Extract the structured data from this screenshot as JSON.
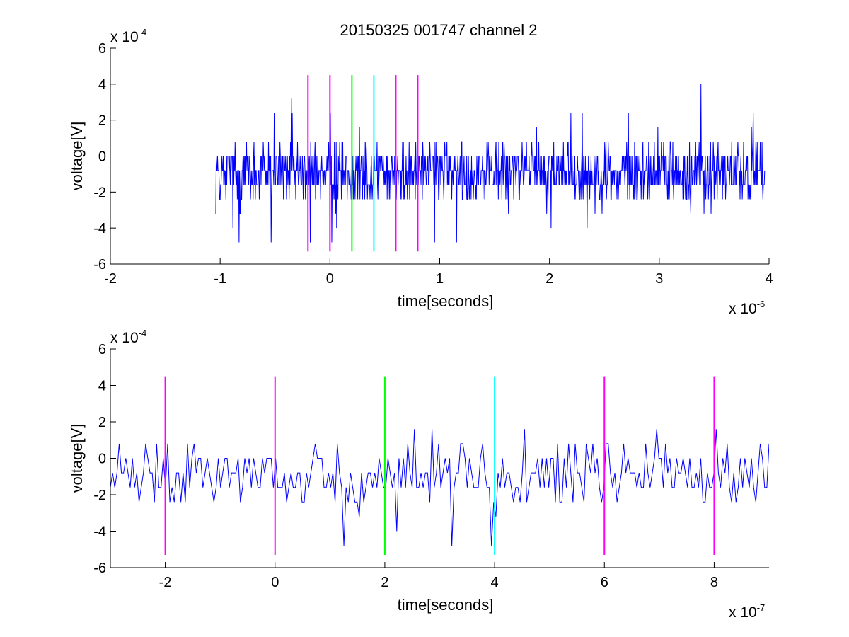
{
  "figure": {
    "title": "20150325 001747 channel 2"
  },
  "chart_data": [
    {
      "type": "line",
      "title": "20150325 001747 channel 2",
      "xlabel": "time[seconds]",
      "ylabel": "voltage[V]",
      "x_scale_label": "x 10",
      "x_scale_exponent": "-6",
      "y_scale_label": "x 10",
      "y_scale_exponent": "-4",
      "xlim": [
        -2,
        4
      ],
      "ylim": [
        -6,
        6
      ],
      "x_ticks": [
        "-2",
        "-1",
        "0",
        "1",
        "2",
        "3",
        "4"
      ],
      "y_ticks": [
        "-6",
        "-4",
        "-2",
        "0",
        "2",
        "4",
        "6"
      ],
      "x_tick_values": [
        -2,
        -1,
        0,
        1,
        2,
        3,
        4
      ],
      "y_tick_values": [
        -6,
        -4,
        -2,
        0,
        2,
        4,
        6
      ],
      "grid": false,
      "series": [
        {
          "color": "#0000ff",
          "x_range": [
            -1.04,
            3.96
          ],
          "samples": 1250,
          "baseline": -0.9,
          "quantum": 0.8,
          "approx_min": -4.8,
          "approx_max": 4.0
        }
      ],
      "markers": [
        {
          "x": -0.2,
          "color": "#ff00ff",
          "y_range": [
            -5.3,
            4.5
          ]
        },
        {
          "x": 0.0,
          "color": "#ff00ff",
          "y_range": [
            -5.3,
            4.5
          ]
        },
        {
          "x": 0.2,
          "color": "#00ff00",
          "y_range": [
            -5.3,
            4.5
          ]
        },
        {
          "x": 0.4,
          "color": "#00ffff",
          "y_range": [
            -5.3,
            4.5
          ]
        },
        {
          "x": 0.6,
          "color": "#ff00ff",
          "y_range": [
            -5.3,
            4.5
          ]
        },
        {
          "x": 0.8,
          "color": "#ff00ff",
          "y_range": [
            -5.3,
            4.5
          ]
        }
      ]
    },
    {
      "type": "line",
      "title": "",
      "xlabel": "time[seconds]",
      "ylabel": "voltage[V]",
      "x_scale_label": "x 10",
      "x_scale_exponent": "-7",
      "y_scale_label": "x 10",
      "y_scale_exponent": "-4",
      "xlim": [
        -3,
        9
      ],
      "ylim": [
        -6,
        6
      ],
      "x_ticks": [
        "-2",
        "0",
        "2",
        "4",
        "6",
        "8"
      ],
      "y_ticks": [
        "-6",
        "-4",
        "-2",
        "0",
        "2",
        "4",
        "6"
      ],
      "x_tick_values": [
        -2,
        0,
        2,
        4,
        6,
        8
      ],
      "y_tick_values": [
        -6,
        -4,
        -2,
        0,
        2,
        4,
        6
      ],
      "grid": false,
      "series": [
        {
          "color": "#0000ff",
          "x_range": [
            -3,
            9
          ],
          "samples": 300,
          "baseline": -0.9,
          "quantum": 0.8,
          "approx_min": -4.8,
          "approx_max": 1.6
        }
      ],
      "markers": [
        {
          "x": -2,
          "color": "#ff00ff",
          "y_range": [
            -5.3,
            4.5
          ]
        },
        {
          "x": 0,
          "color": "#ff00ff",
          "y_range": [
            -5.3,
            4.5
          ]
        },
        {
          "x": 2,
          "color": "#00ff00",
          "y_range": [
            -5.3,
            4.5
          ]
        },
        {
          "x": 4,
          "color": "#00ffff",
          "y_range": [
            -5.3,
            4.5
          ]
        },
        {
          "x": 6,
          "color": "#ff00ff",
          "y_range": [
            -5.3,
            4.5
          ]
        },
        {
          "x": 8,
          "color": "#ff00ff",
          "y_range": [
            -5.3,
            4.5
          ]
        }
      ]
    }
  ]
}
